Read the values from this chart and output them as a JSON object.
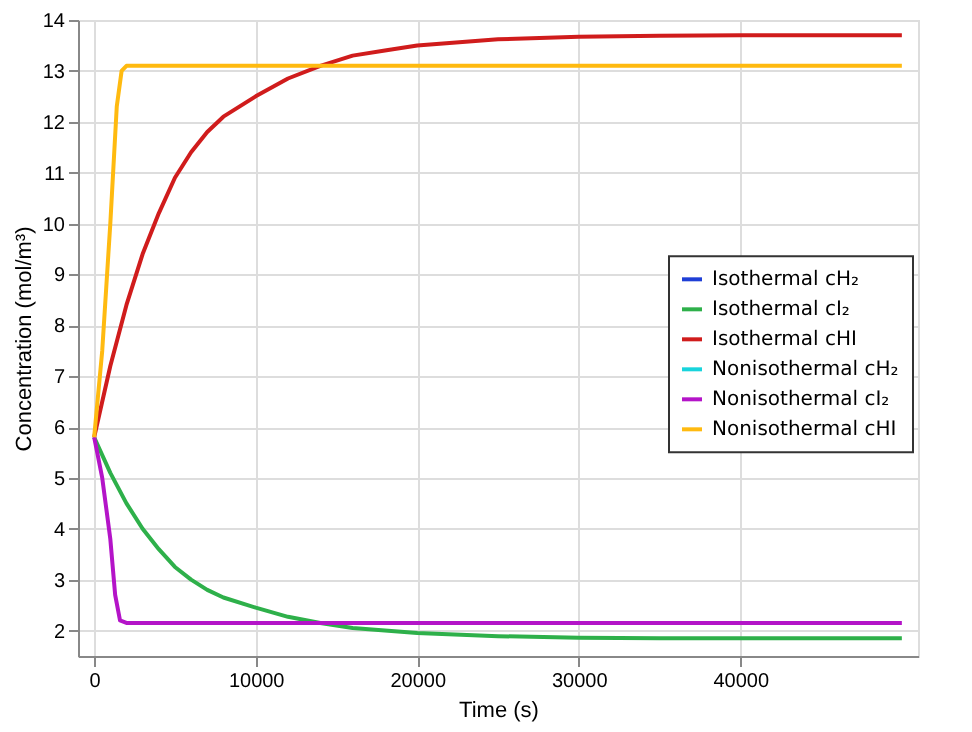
{
  "chart_data": {
    "type": "line",
    "xlabel": "Time (s)",
    "ylabel": "Concentration (mol/m³)",
    "xlim": [
      -1000,
      51000
    ],
    "ylim": [
      1.5,
      14
    ],
    "xticks": [
      0,
      10000,
      20000,
      30000,
      40000
    ],
    "yticks": [
      2,
      3,
      4,
      5,
      6,
      7,
      8,
      9,
      10,
      11,
      12,
      13,
      14
    ],
    "grid": true,
    "legend": "right",
    "line_style": "solid",
    "marker": "none",
    "series": [
      {
        "name": "Isothermal cH₂",
        "color": "#1f3fd6"
      },
      {
        "name": "Isothermal cI₂",
        "color": "#2eb04a",
        "x": [
          0,
          1000,
          2000,
          3000,
          4000,
          5000,
          6000,
          7000,
          8000,
          10000,
          12000,
          14000,
          16000,
          18000,
          20000,
          25000,
          30000,
          35000,
          40000,
          50000
        ],
        "values": [
          5.8,
          5.1,
          4.5,
          4.0,
          3.6,
          3.25,
          3.0,
          2.8,
          2.65,
          2.45,
          2.27,
          2.15,
          2.05,
          2.0,
          1.95,
          1.89,
          1.86,
          1.85,
          1.85,
          1.85
        ]
      },
      {
        "name": "Isothermal cHI",
        "color": "#d01c1c",
        "x": [
          0,
          1000,
          2000,
          3000,
          4000,
          5000,
          6000,
          7000,
          8000,
          10000,
          12000,
          14000,
          16000,
          18000,
          20000,
          25000,
          30000,
          35000,
          40000,
          50000
        ],
        "values": [
          5.8,
          7.2,
          8.4,
          9.4,
          10.2,
          10.9,
          11.4,
          11.8,
          12.1,
          12.5,
          12.85,
          13.1,
          13.3,
          13.4,
          13.5,
          13.62,
          13.67,
          13.69,
          13.7,
          13.7
        ]
      },
      {
        "name": "Nonisothermal cH₂",
        "color": "#18d4dc"
      },
      {
        "name": "Nonisothermal cI₂",
        "color": "#b414c8",
        "x": [
          0,
          500,
          1000,
          1300,
          1600,
          2000,
          50000
        ],
        "values": [
          5.8,
          5.0,
          3.8,
          2.7,
          2.2,
          2.15,
          2.15
        ]
      },
      {
        "name": "Nonisothermal cHI",
        "color": "#ffba10",
        "x": [
          0,
          500,
          1000,
          1400,
          1700,
          2000,
          50000
        ],
        "values": [
          5.8,
          7.5,
          10.0,
          12.3,
          13.0,
          13.1,
          13.1
        ]
      }
    ]
  }
}
